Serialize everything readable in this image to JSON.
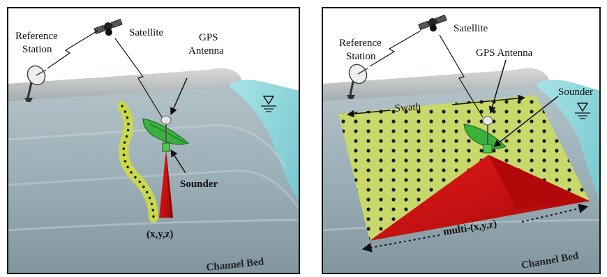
{
  "panels": [
    {
      "id": "single-beam",
      "labels": {
        "reference_station_line1": "Reference",
        "reference_station_line2": "Station",
        "satellite": "Satellite",
        "gps_antenna_line1": "GPS",
        "gps_antenna_line2": "Antenna",
        "sounder": "Sounder",
        "point": "(x,y,z)",
        "channel_bed": "Channel Bed"
      }
    },
    {
      "id": "multi-beam",
      "labels": {
        "reference_station_line1": "Reference",
        "reference_station_line2": "Station",
        "satellite": "Satellite",
        "gps_antenna": "GPS Antenna",
        "sounder": "Sounder",
        "swath": "Swath",
        "points": "multi-(x,y,z)",
        "channel_bed": "Channel Bed"
      }
    }
  ],
  "colors": {
    "bed_top": "#a7b6bc",
    "bed_mid": "#8ea3ab",
    "bank": "#c9c9c9",
    "water": "#8fd3d8",
    "swath_fill": "#c8d86a",
    "beam_red": "#d01010",
    "boat_green": "#33a832",
    "frame": "#111111"
  },
  "icons": [
    "satellite-icon",
    "dish-antenna-icon",
    "water-level-icon",
    "lightning-signal-icon"
  ]
}
